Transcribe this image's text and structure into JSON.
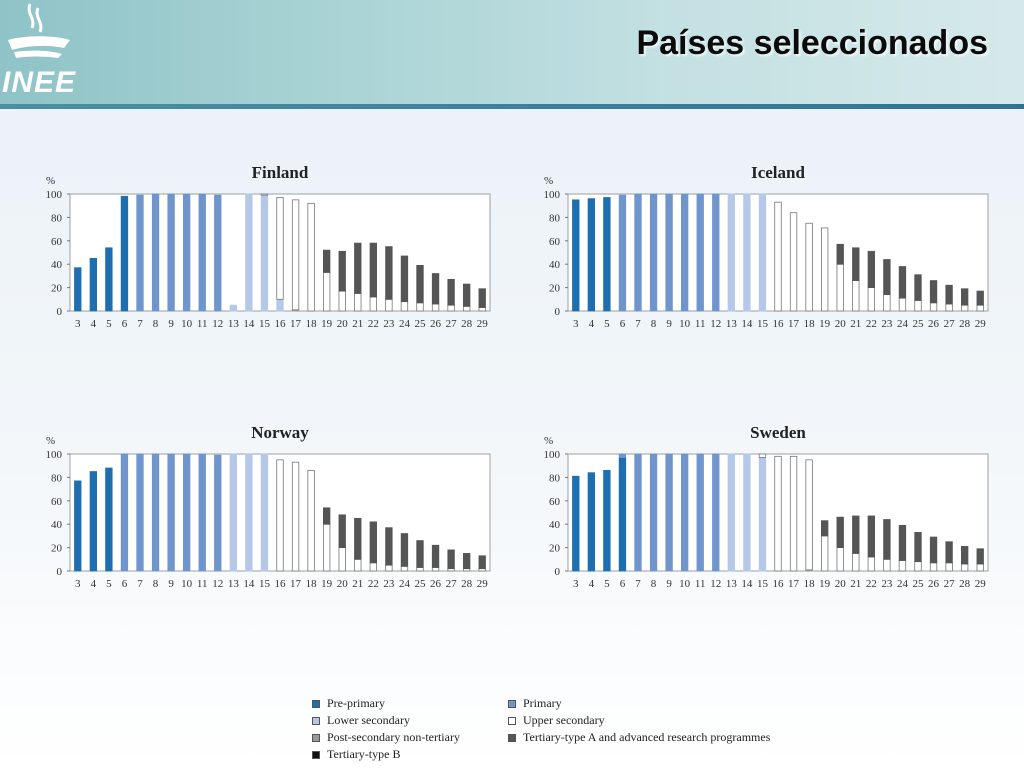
{
  "header": {
    "title": "Países seleccionados",
    "logo_text": "INEE"
  },
  "colors": {
    "pre_primary": "#1e6fb0",
    "primary": "#6f95cc",
    "lower_secondary": "#b6c8e8",
    "upper_secondary": "#ffffff",
    "post_secondary": "#9a9a9a",
    "tertiary_a": "#555555",
    "tertiary_b": "#111111"
  },
  "legend": [
    {
      "key": "pre_primary",
      "label": "Pre-primary"
    },
    {
      "key": "primary",
      "label": "Primary"
    },
    {
      "key": "lower_secondary",
      "label": "Lower secondary"
    },
    {
      "key": "upper_secondary",
      "label": "Upper secondary"
    },
    {
      "key": "post_secondary",
      "label": "Post-secondary non-tertiary"
    },
    {
      "key": "tertiary_a",
      "label": "Tertiary-type A and advanced research programmes"
    },
    {
      "key": "tertiary_b",
      "label": "Tertiary-type B"
    }
  ],
  "chart_data": [
    {
      "type": "bar",
      "title": "Finland",
      "ylabel": "%",
      "ylim": [
        0,
        100
      ],
      "yticks": [
        0,
        20,
        40,
        60,
        80,
        100
      ],
      "categories": [
        "3",
        "4",
        "5",
        "6",
        "7",
        "8",
        "9",
        "10",
        "11",
        "12",
        "13",
        "14",
        "15",
        "16",
        "17",
        "18",
        "19",
        "20",
        "21",
        "22",
        "23",
        "24",
        "25",
        "26",
        "27",
        "28",
        "29"
      ],
      "stacks": [
        {
          "pre_primary": 37
        },
        {
          "pre_primary": 45
        },
        {
          "pre_primary": 54
        },
        {
          "pre_primary": 98
        },
        {
          "primary": 99
        },
        {
          "primary": 100
        },
        {
          "primary": 100
        },
        {
          "primary": 100
        },
        {
          "primary": 100
        },
        {
          "primary": 99
        },
        {
          "lower_secondary": 5,
          "primary": 0
        },
        {
          "lower_secondary": 100
        },
        {
          "lower_secondary": 99,
          "upper_secondary": 1
        },
        {
          "lower_secondary": 10,
          "upper_secondary": 87
        },
        {
          "upper_secondary": 94,
          "post_secondary": 1
        },
        {
          "upper_secondary": 92
        },
        {
          "upper_secondary": 33,
          "tertiary_a": 19
        },
        {
          "upper_secondary": 17,
          "tertiary_a": 34
        },
        {
          "upper_secondary": 15,
          "tertiary_a": 43
        },
        {
          "upper_secondary": 12,
          "tertiary_a": 46
        },
        {
          "upper_secondary": 10,
          "tertiary_a": 45
        },
        {
          "upper_secondary": 8,
          "tertiary_a": 39
        },
        {
          "upper_secondary": 7,
          "tertiary_a": 32
        },
        {
          "upper_secondary": 6,
          "tertiary_a": 26
        },
        {
          "upper_secondary": 5,
          "tertiary_a": 22
        },
        {
          "upper_secondary": 4,
          "tertiary_a": 19
        },
        {
          "upper_secondary": 3,
          "tertiary_a": 16
        }
      ]
    },
    {
      "type": "bar",
      "title": "Iceland",
      "ylabel": "%",
      "ylim": [
        0,
        100
      ],
      "yticks": [
        0,
        20,
        40,
        60,
        80,
        100
      ],
      "categories": [
        "3",
        "4",
        "5",
        "6",
        "7",
        "8",
        "9",
        "10",
        "11",
        "12",
        "13",
        "14",
        "15",
        "16",
        "17",
        "18",
        "19",
        "20",
        "21",
        "22",
        "23",
        "24",
        "25",
        "26",
        "27",
        "28",
        "29"
      ],
      "stacks": [
        {
          "pre_primary": 95
        },
        {
          "pre_primary": 96
        },
        {
          "pre_primary": 97
        },
        {
          "primary": 99
        },
        {
          "primary": 100
        },
        {
          "primary": 100
        },
        {
          "primary": 100
        },
        {
          "primary": 100
        },
        {
          "primary": 100
        },
        {
          "primary": 100
        },
        {
          "lower_secondary": 100
        },
        {
          "lower_secondary": 100
        },
        {
          "lower_secondary": 100
        },
        {
          "upper_secondary": 93
        },
        {
          "upper_secondary": 84
        },
        {
          "upper_secondary": 75
        },
        {
          "upper_secondary": 71
        },
        {
          "upper_secondary": 40,
          "tertiary_a": 17
        },
        {
          "upper_secondary": 26,
          "tertiary_a": 28
        },
        {
          "upper_secondary": 20,
          "tertiary_a": 31
        },
        {
          "upper_secondary": 14,
          "tertiary_a": 30
        },
        {
          "upper_secondary": 11,
          "tertiary_a": 27
        },
        {
          "upper_secondary": 9,
          "tertiary_a": 22
        },
        {
          "upper_secondary": 7,
          "tertiary_a": 19
        },
        {
          "upper_secondary": 6,
          "tertiary_a": 16
        },
        {
          "upper_secondary": 5,
          "tertiary_a": 14
        },
        {
          "upper_secondary": 5,
          "tertiary_a": 12
        }
      ]
    },
    {
      "type": "bar",
      "title": "Norway",
      "ylabel": "%",
      "ylim": [
        0,
        100
      ],
      "yticks": [
        0,
        20,
        40,
        60,
        80,
        100
      ],
      "categories": [
        "3",
        "4",
        "5",
        "6",
        "7",
        "8",
        "9",
        "10",
        "11",
        "12",
        "13",
        "14",
        "15",
        "16",
        "17",
        "18",
        "19",
        "20",
        "21",
        "22",
        "23",
        "24",
        "25",
        "26",
        "27",
        "28",
        "29"
      ],
      "stacks": [
        {
          "pre_primary": 77
        },
        {
          "pre_primary": 85
        },
        {
          "pre_primary": 88
        },
        {
          "primary": 100
        },
        {
          "primary": 100
        },
        {
          "primary": 100
        },
        {
          "primary": 100
        },
        {
          "primary": 100
        },
        {
          "primary": 100
        },
        {
          "primary": 99
        },
        {
          "lower_secondary": 100
        },
        {
          "lower_secondary": 100
        },
        {
          "lower_secondary": 100
        },
        {
          "upper_secondary": 95
        },
        {
          "upper_secondary": 93
        },
        {
          "upper_secondary": 86
        },
        {
          "upper_secondary": 40,
          "tertiary_a": 14
        },
        {
          "upper_secondary": 20,
          "tertiary_a": 28
        },
        {
          "upper_secondary": 10,
          "tertiary_a": 35
        },
        {
          "upper_secondary": 7,
          "tertiary_a": 35
        },
        {
          "upper_secondary": 5,
          "tertiary_a": 32
        },
        {
          "upper_secondary": 4,
          "tertiary_a": 28
        },
        {
          "upper_secondary": 3,
          "tertiary_a": 23
        },
        {
          "upper_secondary": 3,
          "tertiary_a": 19
        },
        {
          "upper_secondary": 2,
          "tertiary_a": 16
        },
        {
          "upper_secondary": 2,
          "tertiary_a": 13
        },
        {
          "upper_secondary": 2,
          "tertiary_a": 11
        }
      ]
    },
    {
      "type": "bar",
      "title": "Sweden",
      "ylabel": "%",
      "ylim": [
        0,
        100
      ],
      "yticks": [
        0,
        20,
        40,
        60,
        80,
        100
      ],
      "categories": [
        "3",
        "4",
        "5",
        "6",
        "7",
        "8",
        "9",
        "10",
        "11",
        "12",
        "13",
        "14",
        "15",
        "16",
        "17",
        "18",
        "19",
        "20",
        "21",
        "22",
        "23",
        "24",
        "25",
        "26",
        "27",
        "28",
        "29"
      ],
      "stacks": [
        {
          "pre_primary": 81
        },
        {
          "pre_primary": 84
        },
        {
          "pre_primary": 86
        },
        {
          "pre_primary": 97,
          "primary": 3
        },
        {
          "primary": 100
        },
        {
          "primary": 100
        },
        {
          "primary": 100
        },
        {
          "primary": 100
        },
        {
          "primary": 100
        },
        {
          "primary": 100
        },
        {
          "lower_secondary": 100
        },
        {
          "lower_secondary": 100
        },
        {
          "lower_secondary": 97,
          "upper_secondary": 3
        },
        {
          "upper_secondary": 98
        },
        {
          "upper_secondary": 98
        },
        {
          "upper_secondary": 94,
          "post_secondary": 1
        },
        {
          "upper_secondary": 30,
          "tertiary_a": 13
        },
        {
          "upper_secondary": 20,
          "tertiary_a": 26
        },
        {
          "upper_secondary": 15,
          "tertiary_a": 32
        },
        {
          "upper_secondary": 12,
          "tertiary_a": 35
        },
        {
          "upper_secondary": 10,
          "tertiary_a": 34
        },
        {
          "upper_secondary": 9,
          "tertiary_a": 30
        },
        {
          "upper_secondary": 8,
          "tertiary_a": 25
        },
        {
          "upper_secondary": 7,
          "tertiary_a": 22
        },
        {
          "upper_secondary": 7,
          "tertiary_a": 18
        },
        {
          "upper_secondary": 6,
          "tertiary_a": 15
        },
        {
          "upper_secondary": 6,
          "tertiary_a": 13
        }
      ]
    }
  ]
}
